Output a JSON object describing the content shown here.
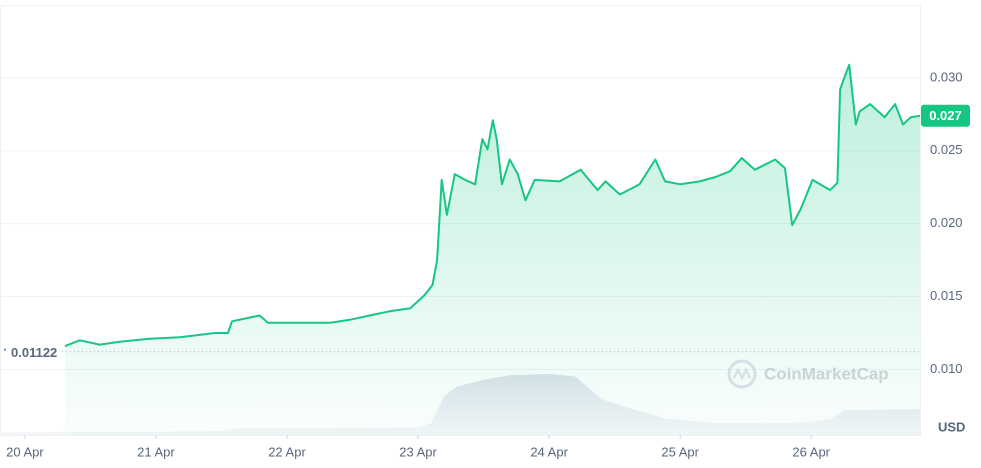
{
  "chart_data": {
    "type": "line",
    "color": "#16c784",
    "x": [
      20.305,
      20.42,
      20.57,
      20.725,
      20.954,
      21.183,
      21.45,
      21.55,
      21.58,
      21.79,
      21.855,
      22.1,
      22.33,
      22.48,
      22.63,
      22.79,
      22.94,
      23.05,
      23.11,
      23.145,
      23.18,
      23.22,
      23.28,
      23.36,
      23.435,
      23.49,
      23.53,
      23.57,
      23.6,
      23.64,
      23.7,
      23.76,
      23.82,
      23.89,
      24.08,
      24.24,
      24.37,
      24.43,
      24.54,
      24.69,
      24.81,
      24.885,
      25.0,
      25.15,
      25.27,
      25.38,
      25.47,
      25.57,
      25.725,
      25.8,
      25.855,
      25.92,
      26.01,
      26.145,
      26.2,
      26.22,
      26.26,
      26.29,
      26.34,
      26.37,
      26.45,
      26.56,
      26.64,
      26.7,
      26.76,
      26.83
    ],
    "values": [
      0.0116,
      0.012,
      0.0117,
      0.0119,
      0.0121,
      0.0122,
      0.0125,
      0.0125,
      0.0133,
      0.0137,
      0.0132,
      0.0132,
      0.0132,
      0.0134,
      0.0137,
      0.014,
      0.0142,
      0.0151,
      0.0158,
      0.0175,
      0.023,
      0.0206,
      0.0234,
      0.023,
      0.0227,
      0.0258,
      0.0251,
      0.0271,
      0.0258,
      0.0227,
      0.0244,
      0.0234,
      0.0216,
      0.023,
      0.0229,
      0.0237,
      0.0223,
      0.0229,
      0.022,
      0.0227,
      0.0244,
      0.0229,
      0.0227,
      0.0229,
      0.0232,
      0.0236,
      0.0245,
      0.0237,
      0.0244,
      0.0238,
      0.0199,
      0.021,
      0.023,
      0.0223,
      0.0228,
      0.0292,
      0.0302,
      0.0309,
      0.0268,
      0.0277,
      0.0282,
      0.0273,
      0.0282,
      0.0268,
      0.0273,
      0.0274
    ],
    "xlim": [
      19.81,
      26.83
    ],
    "ylim": [
      0.0055,
      0.035
    ],
    "xticks": [
      {
        "value": 20,
        "label": "20 Apr"
      },
      {
        "value": 21,
        "label": "21 Apr"
      },
      {
        "value": 22,
        "label": "22 Apr"
      },
      {
        "value": 23,
        "label": "23 Apr"
      },
      {
        "value": 24,
        "label": "24 Apr"
      },
      {
        "value": 25,
        "label": "25 Apr"
      },
      {
        "value": 26,
        "label": "26 Apr"
      }
    ],
    "yticks": [
      {
        "value": 0.01,
        "label": "0.010"
      },
      0.015,
      {
        "value": 0.02,
        "label": "0.020"
      },
      0.025,
      {
        "value": 0.03,
        "label": "0.030"
      }
    ],
    "grid": true,
    "y_unit": "USD",
    "start_price": 0.01122,
    "current_price": {
      "value": 0.0274,
      "label": "0.027"
    },
    "watermark": "CoinMarketCap",
    "volume": {
      "x": [
        19.81,
        20.5,
        21.5,
        21.6,
        22.5,
        23.0,
        23.1,
        23.2,
        23.3,
        23.5,
        23.7,
        24.0,
        24.2,
        24.4,
        24.6,
        24.9,
        25.3,
        25.8,
        26.0,
        26.15,
        26.25,
        26.83
      ],
      "values": [
        4,
        5,
        6,
        10,
        11,
        12,
        18,
        60,
        75,
        85,
        92,
        94,
        90,
        55,
        42,
        25,
        18,
        18,
        20,
        25,
        38,
        40
      ],
      "ylim": [
        0,
        100
      ]
    }
  }
}
